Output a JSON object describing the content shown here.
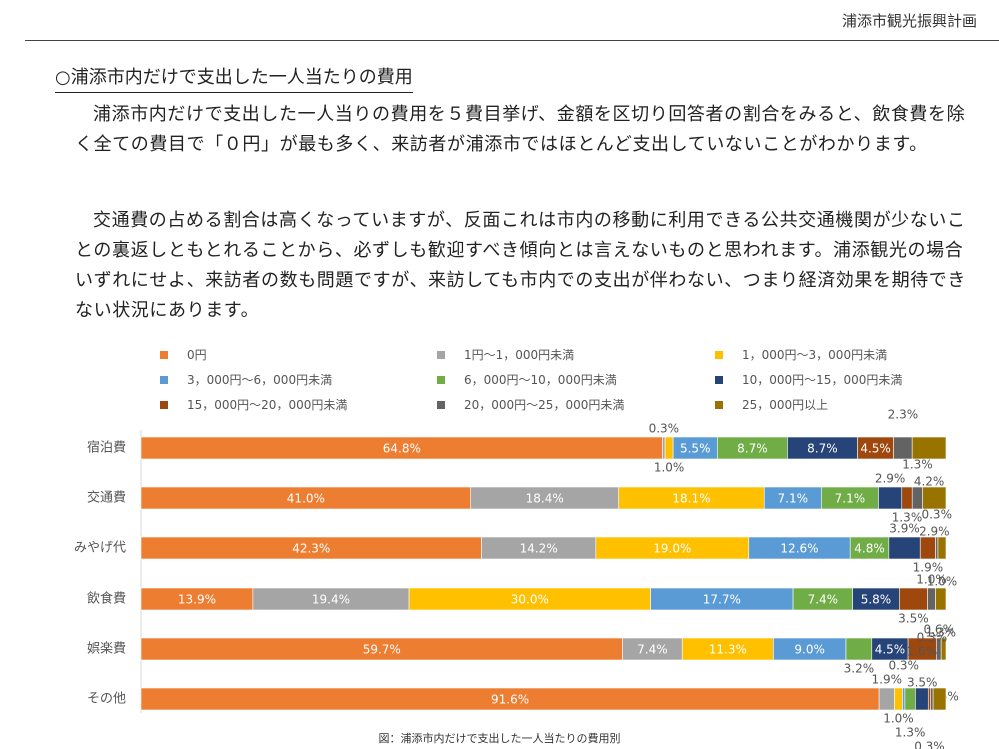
{
  "header": {
    "title": "浦添市観光振興計画"
  },
  "section": {
    "heading": "○浦添市内だけで支出した一人当たりの費用",
    "paragraph1": "浦添市内だけで支出した一人当りの費用を５費目挙げ、金額を区切り回答者の割合をみると、飲食費を除く全ての費目で「０円」が最も多く、来訪者が浦添市ではほとんど支出していないことがわかります。",
    "paragraph2": "交通費の占める割合は高くなっていますが、反面これは市内の移動に利用できる公共交通機関が少ないことの裏返しともとれることから、必ずしも歓迎すべき傾向とは言えないものと思われます。浦添観光の場合いずれにせよ、来訪者の数も問題ですが、来訪しても市内での支出が伴わない、つまり経済効果を期待できない状況にあります。"
  },
  "chart_data": {
    "type": "bar",
    "orientation": "horizontal",
    "stacked": true,
    "unit": "%",
    "xlim": [
      0,
      100
    ],
    "legend_position": "top",
    "categories": [
      "宿泊費",
      "交通費",
      "みやげ代",
      "飲食費",
      "娯楽費",
      "その他"
    ],
    "series": [
      {
        "name": "0円",
        "color": "#ED7D31",
        "values": [
          64.8,
          41.0,
          42.3,
          13.9,
          59.7,
          91.6
        ]
      },
      {
        "name": "1円～1，000円未満",
        "color": "#A5A5A5",
        "values": [
          0.3,
          18.4,
          14.2,
          19.4,
          7.4,
          1.9
        ]
      },
      {
        "name": "1，000円～3，000円未満",
        "color": "#FFC000",
        "values": [
          1.0,
          18.1,
          19.0,
          30.0,
          11.3,
          1.0
        ]
      },
      {
        "name": "3，000円～6，000円未満",
        "color": "#5B9BD5",
        "values": [
          5.5,
          7.1,
          12.6,
          17.7,
          9.0,
          0.3
        ]
      },
      {
        "name": "6，000円～10，000円未満",
        "color": "#70AD47",
        "values": [
          8.7,
          7.1,
          4.8,
          7.4,
          3.2,
          1.3
        ]
      },
      {
        "name": "10，000円～15，000円未満",
        "color": "#264478",
        "values": [
          8.7,
          2.9,
          3.9,
          5.8,
          4.5,
          1.6
        ]
      },
      {
        "name": "15，000円～20，000円未満",
        "color": "#9E480E",
        "values": [
          4.5,
          1.3,
          1.9,
          3.5,
          3.5,
          0.3
        ]
      },
      {
        "name": "20，000円～25，000円未満",
        "color": "#636363",
        "values": [
          2.3,
          1.3,
          0.3,
          1.0,
          0.6,
          0.3
        ]
      },
      {
        "name": "25，000円以上",
        "color": "#997300",
        "values": [
          4.2,
          2.9,
          1.0,
          1.3,
          0.6,
          1.6
        ]
      }
    ],
    "value_labels": [
      [
        "64.8%",
        "0.3%",
        "1.0%",
        "5.5%",
        "8.7%",
        "8.7%",
        "4.5%",
        "2.3%",
        "4.2%"
      ],
      [
        "41.0%",
        "18.4%",
        "18.1%",
        "7.1%",
        "7.1%",
        "2.9%",
        "1.3%",
        "1.3%",
        "2.9%"
      ],
      [
        "42.3%",
        "14.2%",
        "19.0%",
        "12.6%",
        "4.8%",
        "3.9%",
        "1.9%",
        "0.3%",
        "1.0%"
      ],
      [
        "13.9%",
        "19.4%",
        "30.0%",
        "17.7%",
        "7.4%",
        "5.8%",
        "3.5%",
        "1.0%",
        "1.3%"
      ],
      [
        "59.7%",
        "7.4%",
        "11.3%",
        "9.0%",
        "3.2%",
        "4.5%",
        "3.5%",
        "0.6%",
        "0.6%"
      ],
      [
        "91.6%",
        "1.9%",
        "1.0%",
        "0.3%",
        "1.3%",
        "1.6%",
        "0.3%",
        "0.3%",
        "1.6%"
      ]
    ],
    "caption": "図：浦添市内だけで支出した一人当たりの費用別"
  }
}
